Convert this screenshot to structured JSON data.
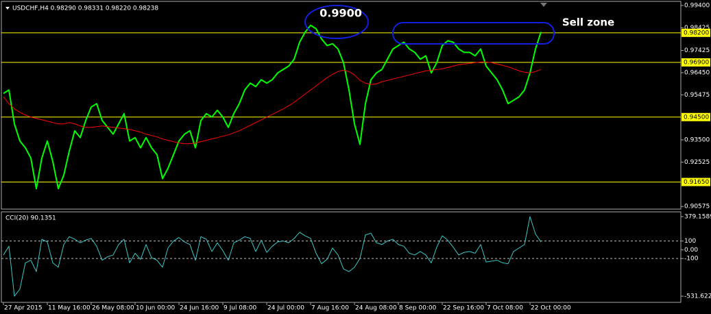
{
  "chart_data": [
    {
      "type": "line",
      "title": "USDCHF,H4  0.98290 0.98331 0.98220 0.98238",
      "annotations": [
        "0.9900",
        "Sell zone"
      ],
      "ylim": [
        0.9046,
        0.9958
      ],
      "yticks": [
        {
          "value": 0.994,
          "label": "0.99400"
        },
        {
          "value": 0.98425,
          "label": "0.98425"
        },
        {
          "value": 0.97425,
          "label": "0.97425"
        },
        {
          "value": 0.9645,
          "label": "0.96450"
        },
        {
          "value": 0.95475,
          "label": "0.95475"
        },
        {
          "value": 0.935,
          "label": "0.93500"
        },
        {
          "value": 0.92525,
          "label": "0.92525"
        },
        {
          "value": 0.90575,
          "label": "0.90575"
        }
      ],
      "levels": [
        {
          "value": 0.982,
          "label": "0.98200"
        },
        {
          "value": 0.969,
          "label": "0.96900"
        },
        {
          "value": 0.945,
          "label": "0.94500"
        },
        {
          "value": 0.9165,
          "label": "0.91650"
        }
      ],
      "level_color": "#ffff00",
      "series": [
        {
          "color": "#00ff00",
          "values": [
            0.9554,
            0.9569,
            0.942,
            0.9345,
            0.9315,
            0.927,
            0.9136,
            0.927,
            0.9345,
            0.9255,
            0.9136,
            0.9195,
            0.93,
            0.939,
            0.936,
            0.9435,
            0.9494,
            0.9509,
            0.9435,
            0.9405,
            0.9375,
            0.942,
            0.9465,
            0.9345,
            0.936,
            0.9315,
            0.936,
            0.9315,
            0.9285,
            0.918,
            0.9225,
            0.9285,
            0.9345,
            0.9375,
            0.939,
            0.9315,
            0.9435,
            0.9465,
            0.945,
            0.948,
            0.945,
            0.9405,
            0.9465,
            0.9509,
            0.9569,
            0.9599,
            0.9584,
            0.9614,
            0.9599,
            0.9614,
            0.9644,
            0.9659,
            0.9674,
            0.9704,
            0.9779,
            0.9823,
            0.9853,
            0.9838,
            0.9793,
            0.9764,
            0.9772,
            0.9749,
            0.9689,
            0.9569,
            0.942,
            0.933,
            0.9509,
            0.9614,
            0.9644,
            0.9659,
            0.9704,
            0.9749,
            0.9764,
            0.9779,
            0.9749,
            0.9734,
            0.9704,
            0.9719,
            0.9644,
            0.9689,
            0.9764,
            0.9785,
            0.9779,
            0.9749,
            0.9734,
            0.9734,
            0.9719,
            0.9749,
            0.9674,
            0.9644,
            0.9614,
            0.9569,
            0.9509,
            0.9524,
            0.9539,
            0.9569,
            0.9644,
            0.9749,
            0.9824
          ],
          "width": 2
        },
        {
          "color": "#ff0000",
          "values": [
            0.9539,
            0.9509,
            0.9486,
            0.9471,
            0.9459,
            0.945,
            0.9444,
            0.9438,
            0.9432,
            0.9426,
            0.942,
            0.942,
            0.9426,
            0.942,
            0.9411,
            0.9405,
            0.9405,
            0.9408,
            0.9411,
            0.9408,
            0.9405,
            0.9402,
            0.9399,
            0.9396,
            0.939,
            0.9384,
            0.9375,
            0.9369,
            0.9363,
            0.9354,
            0.9348,
            0.9342,
            0.9336,
            0.9333,
            0.9333,
            0.9336,
            0.9342,
            0.9348,
            0.9354,
            0.936,
            0.9366,
            0.9372,
            0.9381,
            0.939,
            0.9402,
            0.9414,
            0.9426,
            0.9438,
            0.945,
            0.9462,
            0.9474,
            0.9486,
            0.95,
            0.9515,
            0.9533,
            0.9551,
            0.9569,
            0.9587,
            0.9605,
            0.9623,
            0.9638,
            0.965,
            0.9656,
            0.965,
            0.9635,
            0.9611,
            0.9599,
            0.9593,
            0.9596,
            0.9605,
            0.9611,
            0.9617,
            0.9623,
            0.9629,
            0.9635,
            0.9641,
            0.9647,
            0.9653,
            0.9656,
            0.9659,
            0.9662,
            0.9668,
            0.9674,
            0.968,
            0.9683,
            0.9686,
            0.9689,
            0.9692,
            0.9692,
            0.9689,
            0.9683,
            0.9677,
            0.9671,
            0.9662,
            0.9653,
            0.9647,
            0.9644,
            0.965,
            0.9659
          ],
          "width": 1
        }
      ]
    },
    {
      "type": "line",
      "title": "CCI(20) 90.1351",
      "ylim": [
        -602,
        434
      ],
      "yticks": [
        379.1589,
        100,
        {
          "value": 0,
          "label": "0.00"
        },
        -100,
        -531.6224
      ],
      "levels": [
        100,
        -100
      ],
      "categories": [
        "27 Apr 2015",
        null,
        null,
        null,
        null,
        null,
        null,
        null,
        "11 May 16:00",
        null,
        null,
        null,
        null,
        null,
        null,
        null,
        "26 May 08:00",
        null,
        null,
        null,
        null,
        null,
        null,
        null,
        "10 Jun 00:00",
        null,
        null,
        null,
        null,
        null,
        null,
        null,
        "24 Jun 16:00",
        null,
        null,
        null,
        null,
        null,
        null,
        null,
        "9 Jul 08:00",
        null,
        null,
        null,
        null,
        null,
        null,
        null,
        "24 Jul 00:00",
        null,
        null,
        null,
        null,
        null,
        null,
        null,
        "7 Aug 16:00",
        null,
        null,
        null,
        null,
        null,
        null,
        null,
        "24 Aug 08:00",
        null,
        null,
        null,
        null,
        null,
        null,
        null,
        "8 Sep 00:00",
        null,
        null,
        null,
        null,
        null,
        null,
        null,
        "22 Sep 16:00",
        null,
        null,
        null,
        null,
        null,
        null,
        null,
        "7 Oct 08:00",
        null,
        null,
        null,
        null,
        null,
        null,
        null,
        "22 Oct 00:00",
        null,
        null
      ],
      "series": [
        {
          "color": "#3cc8c8",
          "values": [
            -60,
            40,
            -531.6224,
            -450,
            -150,
            -120,
            -250,
            120,
            90,
            -150,
            -200,
            60,
            150,
            120,
            80,
            110,
            130,
            40,
            -120,
            -80,
            -60,
            60,
            120,
            -150,
            -40,
            -110,
            60,
            -90,
            -120,
            -200,
            20,
            100,
            140,
            90,
            60,
            -120,
            150,
            120,
            -20,
            80,
            -10,
            -120,
            80,
            110,
            150,
            130,
            -20,
            110,
            -30,
            40,
            90,
            100,
            80,
            130,
            200,
            160,
            130,
            -40,
            -160,
            -110,
            20,
            -60,
            -220,
            -250,
            -200,
            -100,
            170,
            190,
            80,
            60,
            100,
            120,
            60,
            40,
            -40,
            -60,
            -20,
            -60,
            -150,
            30,
            160,
            110,
            30,
            -60,
            -30,
            -20,
            -40,
            60,
            -140,
            -130,
            -120,
            -150,
            -160,
            -20,
            20,
            60,
            379.1589,
            180,
            90.1351
          ],
          "width": 1
        }
      ]
    }
  ]
}
